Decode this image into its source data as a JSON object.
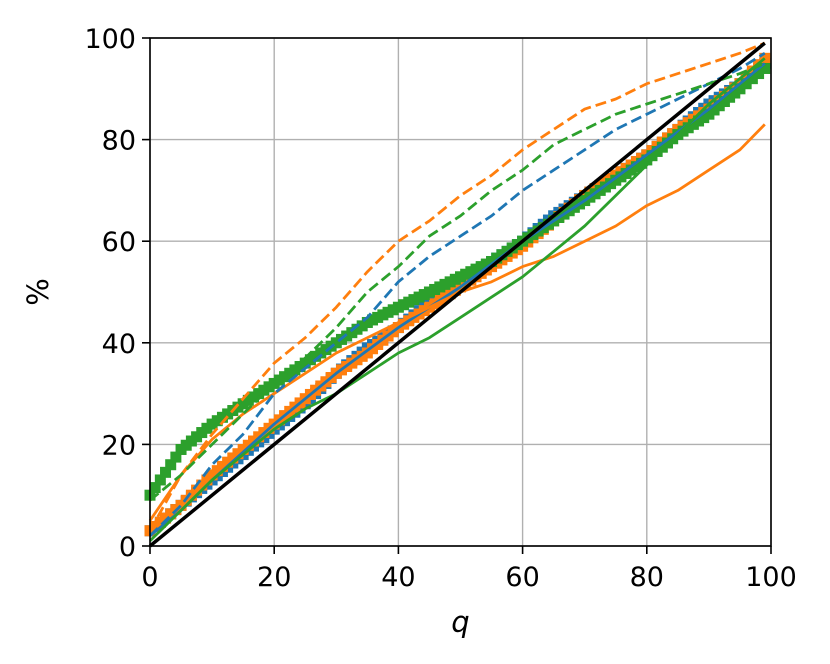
{
  "chart_data": {
    "type": "line",
    "title": "",
    "xlabel": "q",
    "ylabel": "%",
    "xlim": [
      0,
      100
    ],
    "ylim": [
      0,
      100
    ],
    "xticks": [
      "0",
      "20",
      "40",
      "60",
      "80",
      "100"
    ],
    "yticks": [
      "0",
      "20",
      "40",
      "60",
      "80",
      "100"
    ],
    "grid": true,
    "legend": "none",
    "colors": {
      "blue": "#1f77b4",
      "orange": "#ff7f0e",
      "green": "#2ca02c",
      "black": "#000000",
      "grid": "#b0b0b0"
    },
    "series": [
      {
        "color": "#1f77b4",
        "style": "solid",
        "points": [
          [
            0,
            2
          ],
          [
            5,
            7
          ],
          [
            10,
            13
          ],
          [
            20,
            24
          ],
          [
            30,
            34
          ],
          [
            40,
            43
          ],
          [
            50,
            51
          ],
          [
            60,
            60
          ],
          [
            70,
            68
          ],
          [
            80,
            77
          ],
          [
            90,
            86
          ],
          [
            99,
            95
          ]
        ]
      },
      {
        "color": "#1f77b4",
        "style": "dashed",
        "points": [
          [
            0,
            2
          ],
          [
            5,
            8
          ],
          [
            10,
            16
          ],
          [
            15,
            22
          ],
          [
            20,
            30
          ],
          [
            25,
            35
          ],
          [
            30,
            40
          ],
          [
            35,
            45
          ],
          [
            40,
            52
          ],
          [
            45,
            57
          ],
          [
            50,
            61
          ],
          [
            55,
            65
          ],
          [
            60,
            70
          ],
          [
            65,
            74
          ],
          [
            70,
            78
          ],
          [
            75,
            82
          ],
          [
            80,
            85
          ],
          [
            85,
            88
          ],
          [
            90,
            91
          ],
          [
            95,
            94
          ],
          [
            99,
            97
          ]
        ]
      },
      {
        "color": "#1f77b4",
        "style": "squares",
        "points": [
          [
            0,
            3
          ],
          [
            5,
            8
          ],
          [
            10,
            13
          ],
          [
            15,
            18
          ],
          [
            20,
            23
          ],
          [
            25,
            28
          ],
          [
            30,
            34
          ],
          [
            35,
            39
          ],
          [
            40,
            43
          ],
          [
            45,
            48
          ],
          [
            50,
            52
          ],
          [
            55,
            56
          ],
          [
            60,
            60
          ],
          [
            65,
            65
          ],
          [
            70,
            69
          ],
          [
            75,
            73
          ],
          [
            80,
            77
          ],
          [
            85,
            82
          ],
          [
            90,
            87
          ],
          [
            95,
            91
          ],
          [
            99,
            95
          ]
        ]
      },
      {
        "color": "#ff7f0e",
        "style": "solid",
        "points": [
          [
            0,
            5
          ],
          [
            5,
            14
          ],
          [
            10,
            21
          ],
          [
            15,
            26
          ],
          [
            20,
            30
          ],
          [
            25,
            34
          ],
          [
            30,
            38
          ],
          [
            35,
            41
          ],
          [
            40,
            44
          ],
          [
            45,
            47
          ],
          [
            50,
            50
          ],
          [
            55,
            52
          ],
          [
            60,
            55
          ],
          [
            65,
            57
          ],
          [
            70,
            60
          ],
          [
            75,
            63
          ],
          [
            80,
            67
          ],
          [
            85,
            70
          ],
          [
            90,
            74
          ],
          [
            95,
            78
          ],
          [
            99,
            83
          ]
        ]
      },
      {
        "color": "#ff7f0e",
        "style": "dashed",
        "points": [
          [
            0,
            3
          ],
          [
            5,
            14
          ],
          [
            10,
            22
          ],
          [
            15,
            29
          ],
          [
            20,
            36
          ],
          [
            25,
            41
          ],
          [
            30,
            47
          ],
          [
            35,
            54
          ],
          [
            40,
            60
          ],
          [
            45,
            64
          ],
          [
            50,
            69
          ],
          [
            55,
            73
          ],
          [
            60,
            78
          ],
          [
            65,
            82
          ],
          [
            70,
            86
          ],
          [
            75,
            88
          ],
          [
            80,
            91
          ],
          [
            85,
            93
          ],
          [
            90,
            95
          ],
          [
            95,
            97
          ],
          [
            99,
            99
          ]
        ]
      },
      {
        "color": "#ff7f0e",
        "style": "squares",
        "points": [
          [
            0,
            3
          ],
          [
            5,
            8
          ],
          [
            10,
            14
          ],
          [
            15,
            19
          ],
          [
            20,
            24
          ],
          [
            25,
            29
          ],
          [
            30,
            34
          ],
          [
            35,
            38
          ],
          [
            40,
            43
          ],
          [
            45,
            47
          ],
          [
            50,
            51
          ],
          [
            55,
            55
          ],
          [
            60,
            59
          ],
          [
            65,
            64
          ],
          [
            70,
            69
          ],
          [
            75,
            73
          ],
          [
            80,
            77
          ],
          [
            85,
            82
          ],
          [
            90,
            86
          ],
          [
            95,
            91
          ],
          [
            99,
            96
          ]
        ]
      },
      {
        "color": "#2ca02c",
        "style": "solid",
        "points": [
          [
            0,
            1
          ],
          [
            5,
            7
          ],
          [
            10,
            13
          ],
          [
            15,
            18
          ],
          [
            20,
            23
          ],
          [
            25,
            27
          ],
          [
            30,
            30
          ],
          [
            35,
            34
          ],
          [
            40,
            38
          ],
          [
            45,
            41
          ],
          [
            50,
            45
          ],
          [
            55,
            49
          ],
          [
            60,
            53
          ],
          [
            65,
            58
          ],
          [
            70,
            63
          ],
          [
            75,
            69
          ],
          [
            80,
            75
          ],
          [
            85,
            81
          ],
          [
            90,
            87
          ],
          [
            95,
            92
          ],
          [
            99,
            96
          ]
        ]
      },
      {
        "color": "#2ca02c",
        "style": "dashed",
        "points": [
          [
            0,
            9
          ],
          [
            5,
            14
          ],
          [
            10,
            20
          ],
          [
            15,
            26
          ],
          [
            20,
            32
          ],
          [
            25,
            37
          ],
          [
            30,
            43
          ],
          [
            35,
            50
          ],
          [
            40,
            55
          ],
          [
            45,
            61
          ],
          [
            50,
            65
          ],
          [
            55,
            70
          ],
          [
            60,
            74
          ],
          [
            65,
            79
          ],
          [
            70,
            82
          ],
          [
            75,
            85
          ],
          [
            80,
            87
          ],
          [
            85,
            89
          ],
          [
            90,
            91
          ],
          [
            95,
            93
          ],
          [
            99,
            95
          ]
        ]
      },
      {
        "color": "#2ca02c",
        "style": "squares",
        "points": [
          [
            0,
            10
          ],
          [
            5,
            19
          ],
          [
            10,
            24
          ],
          [
            15,
            28
          ],
          [
            20,
            32
          ],
          [
            25,
            36
          ],
          [
            30,
            40
          ],
          [
            35,
            44
          ],
          [
            40,
            47
          ],
          [
            45,
            50
          ],
          [
            50,
            53
          ],
          [
            55,
            56
          ],
          [
            60,
            60
          ],
          [
            65,
            64
          ],
          [
            70,
            68
          ],
          [
            75,
            72
          ],
          [
            80,
            76
          ],
          [
            85,
            81
          ],
          [
            90,
            85
          ],
          [
            95,
            90
          ],
          [
            99,
            94
          ]
        ]
      },
      {
        "color": "#000000",
        "style": "solid",
        "points": [
          [
            0,
            0
          ],
          [
            99,
            99
          ]
        ]
      }
    ]
  }
}
